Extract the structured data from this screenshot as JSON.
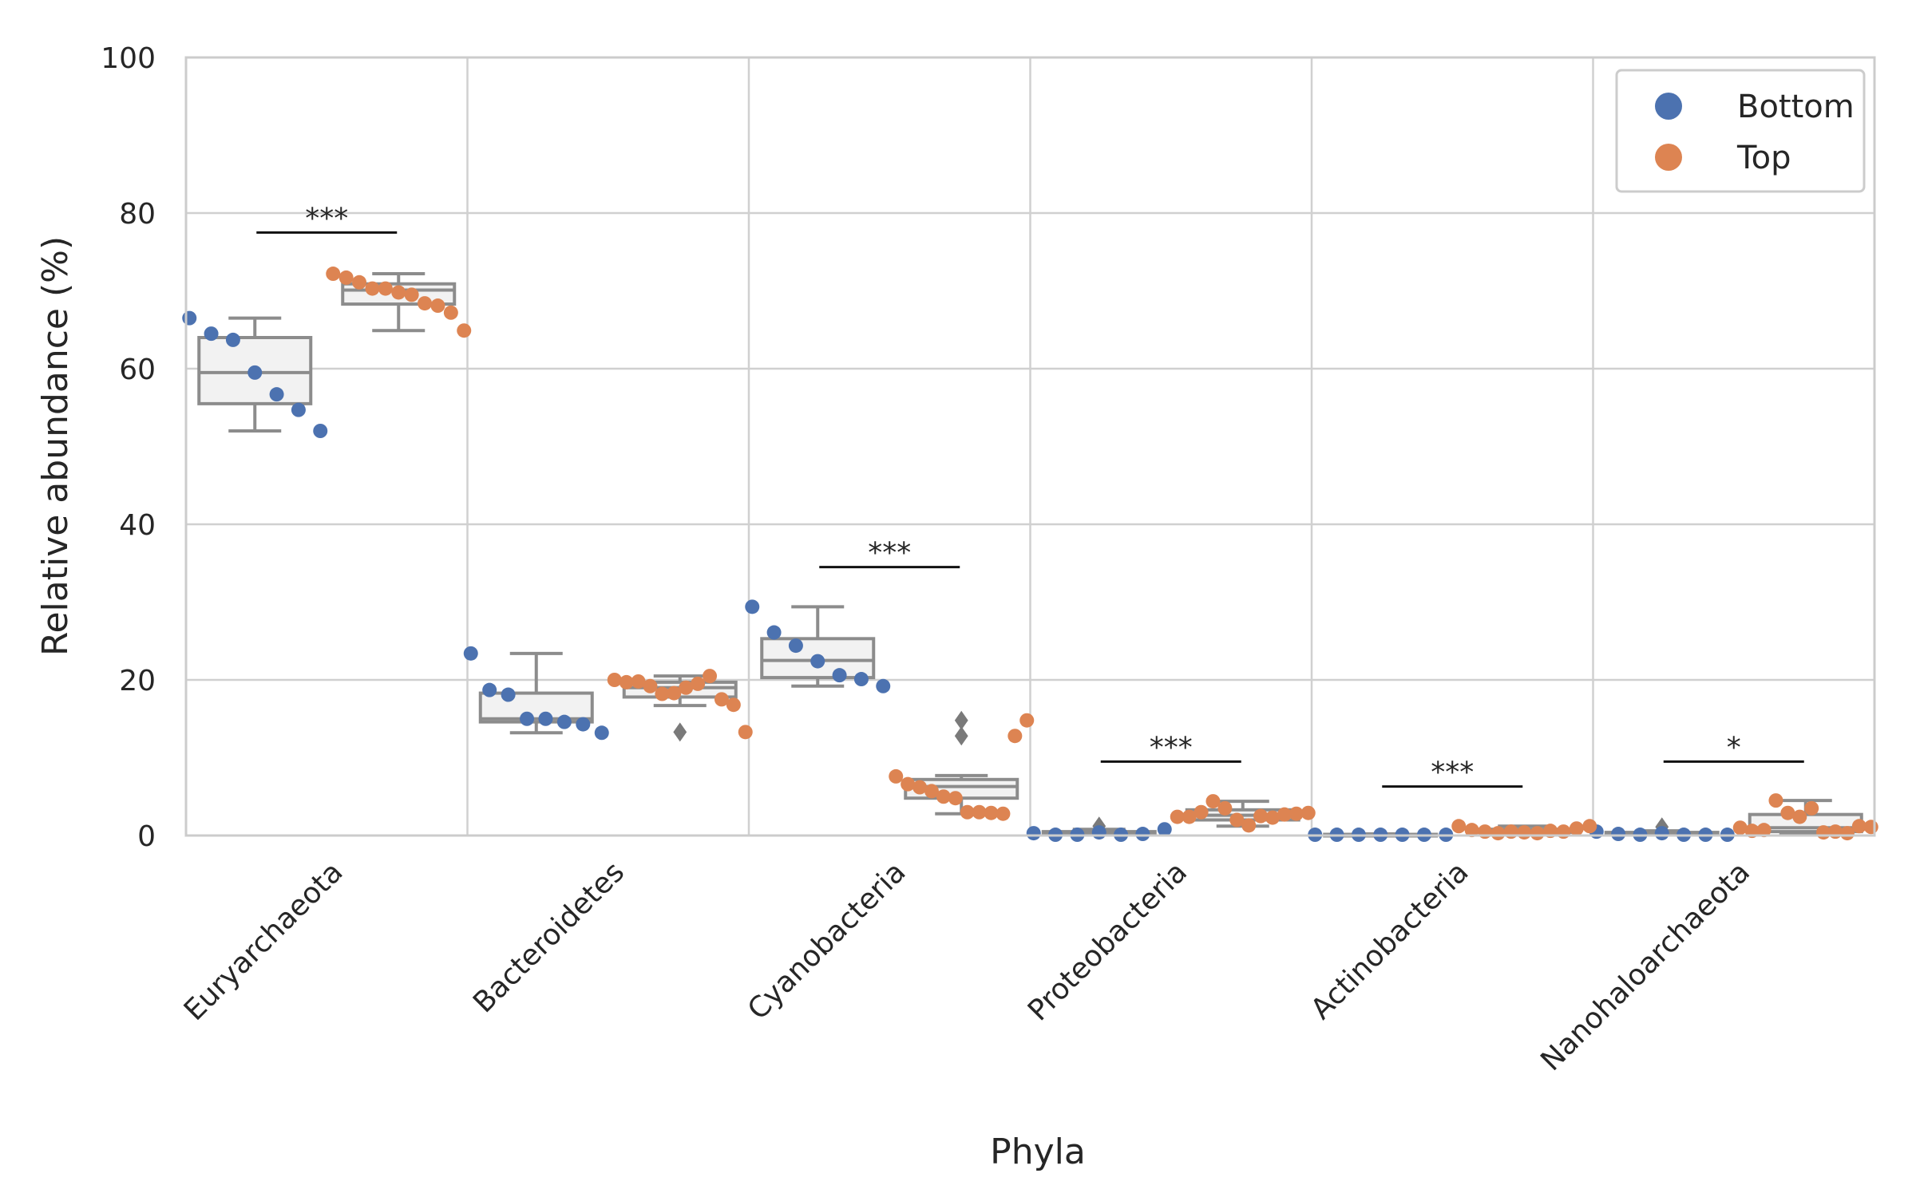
{
  "chart_data": {
    "type": "box",
    "title": "",
    "xlabel": "Phyla",
    "ylabel": "Relative abundance (%)",
    "ylim": [
      0,
      100
    ],
    "yticks": [
      0,
      20,
      40,
      60,
      80,
      100
    ],
    "grid": true,
    "legend": {
      "position": "top-right"
    },
    "categories": [
      "Euryarchaeota",
      "Bacteroidetes",
      "Cyanobacteria",
      "Proteobacteria",
      "Actinobacteria",
      "Nanohaloarchaeota"
    ],
    "series": [
      {
        "name": "Bottom",
        "color": "#4c72b0",
        "boxes": [
          {
            "whislo": 52.0,
            "q1": 55.5,
            "med": 59.5,
            "q3": 64.0,
            "whishi": 66.5,
            "fliers": []
          },
          {
            "whislo": 13.2,
            "q1": 14.6,
            "med": 15.0,
            "q3": 18.3,
            "whishi": 23.4,
            "fliers": []
          },
          {
            "whislo": 19.2,
            "q1": 20.3,
            "med": 22.5,
            "q3": 25.3,
            "whishi": 29.4,
            "fliers": []
          },
          {
            "whislo": 0.1,
            "q1": 0.2,
            "med": 0.3,
            "q3": 0.5,
            "whishi": 0.8,
            "fliers": [
              1.2
            ]
          },
          {
            "whislo": 0.0,
            "q1": 0.05,
            "med": 0.1,
            "q3": 0.15,
            "whishi": 0.2,
            "fliers": []
          },
          {
            "whislo": 0.05,
            "q1": 0.1,
            "med": 0.2,
            "q3": 0.4,
            "whishi": 0.6,
            "fliers": [
              1.1
            ]
          }
        ],
        "points": [
          [
            66.5,
            64.5,
            63.7,
            59.5,
            56.7,
            54.7,
            52.0
          ],
          [
            23.4,
            18.7,
            18.1,
            15.0,
            15.0,
            14.6,
            14.3,
            13.2
          ],
          [
            29.4,
            26.1,
            24.4,
            22.4,
            20.6,
            20.1,
            19.2
          ],
          [
            0.3,
            0.1,
            0.1,
            0.4,
            0.1,
            0.2,
            0.8
          ],
          [
            0.1,
            0.1,
            0.1,
            0.1,
            0.1,
            0.1,
            0.1
          ],
          [
            0.5,
            0.2,
            0.1,
            0.3,
            0.1,
            0.1,
            0.1
          ]
        ]
      },
      {
        "name": "Top",
        "color": "#dd8452",
        "boxes": [
          {
            "whislo": 64.9,
            "q1": 68.3,
            "med": 70.1,
            "q3": 70.9,
            "whishi": 72.2,
            "fliers": []
          },
          {
            "whislo": 16.7,
            "q1": 17.8,
            "med": 19.0,
            "q3": 19.7,
            "whishi": 20.5,
            "fliers": [
              13.3
            ]
          },
          {
            "whislo": 2.8,
            "q1": 4.8,
            "med": 6.3,
            "q3": 7.2,
            "whishi": 7.7,
            "fliers": [
              12.8,
              14.8
            ]
          },
          {
            "whislo": 1.2,
            "q1": 2.0,
            "med": 2.6,
            "q3": 3.3,
            "whishi": 4.4,
            "fliers": []
          },
          {
            "whislo": 0.2,
            "q1": 0.4,
            "med": 0.6,
            "q3": 0.8,
            "whishi": 1.2,
            "fliers": []
          },
          {
            "whislo": 0.3,
            "q1": 0.5,
            "med": 1.0,
            "q3": 2.7,
            "whishi": 4.5,
            "fliers": []
          }
        ],
        "points": [
          [
            72.2,
            71.7,
            71.1,
            70.3,
            70.3,
            69.8,
            69.5,
            68.4,
            68.1,
            67.2,
            64.9
          ],
          [
            20.0,
            19.7,
            19.8,
            19.2,
            18.2,
            18.3,
            19.0,
            19.5,
            20.5,
            17.5,
            16.8,
            13.3
          ],
          [
            7.6,
            6.6,
            6.2,
            5.7,
            5.0,
            4.8,
            3.0,
            3.0,
            2.9,
            2.8,
            12.8,
            14.8
          ],
          [
            2.4,
            2.4,
            3.0,
            4.4,
            3.5,
            2.0,
            1.3,
            2.5,
            2.3,
            2.7,
            2.8,
            2.9
          ],
          [
            1.2,
            0.7,
            0.5,
            0.3,
            0.5,
            0.4,
            0.3,
            0.6,
            0.5,
            0.9,
            1.2
          ],
          [
            1.0,
            0.6,
            0.7,
            4.5,
            2.9,
            2.4,
            3.5,
            0.4,
            0.5,
            0.3,
            1.2,
            1.1
          ]
        ]
      }
    ],
    "significance": [
      {
        "category": "Euryarchaeota",
        "label": "***",
        "y": 77.5
      },
      {
        "category": "Cyanobacteria",
        "label": "***",
        "y": 34.5
      },
      {
        "category": "Proteobacteria",
        "label": "***",
        "y": 9.5
      },
      {
        "category": "Actinobacteria",
        "label": "***",
        "y": 6.3
      },
      {
        "category": "Nanohaloarchaeota",
        "label": "*",
        "y": 9.5
      }
    ]
  }
}
